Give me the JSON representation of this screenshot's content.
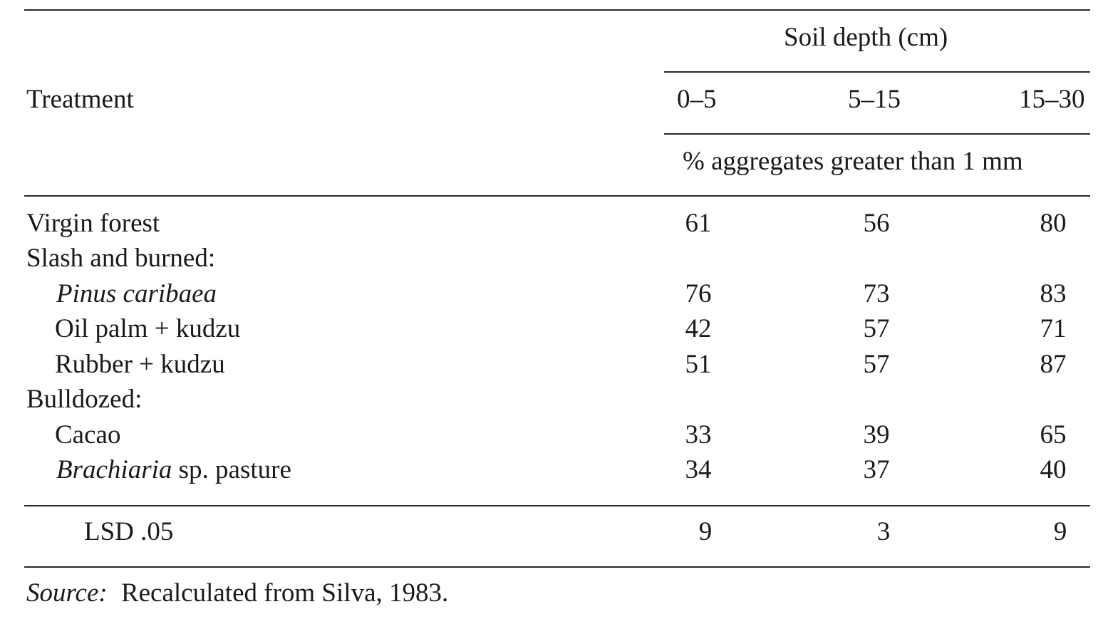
{
  "header": {
    "treatment_label": "Treatment",
    "spanner": "Soil depth (cm)",
    "columns": [
      "0–5",
      "5–15",
      "15–30"
    ],
    "units": "% aggregates greater than 1 mm"
  },
  "rows": [
    {
      "label": "Virgin forest",
      "values": [
        "61",
        "56",
        "80"
      ]
    },
    {
      "label": "Slash and burned:"
    },
    {
      "label": "Pinus caribaea",
      "values": [
        "76",
        "73",
        "83"
      ]
    },
    {
      "label": "Oil palm + kudzu",
      "values": [
        "42",
        "57",
        "71"
      ]
    },
    {
      "label": "Rubber + kudzu",
      "values": [
        "51",
        "57",
        "87"
      ]
    },
    {
      "label": "Bulldozed:"
    },
    {
      "label": "Cacao",
      "values": [
        "33",
        "39",
        "65"
      ]
    },
    {
      "label_italic": "Brachiaria",
      "label_rest": " sp. pasture",
      "values": [
        "34",
        "37",
        "40"
      ]
    }
  ],
  "lsd": {
    "label": "LSD .05",
    "values": [
      "9",
      "3",
      "9"
    ]
  },
  "source": {
    "prefix": "Source:",
    "text": "Recalculated from Silva, 1983."
  }
}
